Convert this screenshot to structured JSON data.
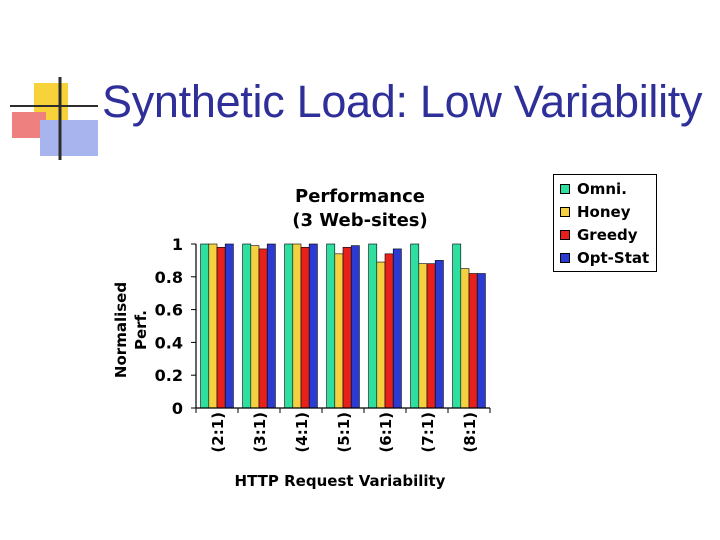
{
  "slide_title": "Synthetic Load: Low Variability",
  "chart_data": {
    "type": "bar",
    "title_lines": [
      "Performance",
      "(3 Web-sites)"
    ],
    "xlabel": "HTTP Request Variability",
    "ylabel_lines": [
      "Normalised",
      "Perf."
    ],
    "categories": [
      "(2:1)",
      "(3:1)",
      "(4:1)",
      "(5:1)",
      "(6:1)",
      "(7:1)",
      "(8:1)"
    ],
    "ylim": [
      0,
      1
    ],
    "yticks": [
      0,
      0.2,
      0.4,
      0.6,
      0.8,
      1
    ],
    "ytick_labels": [
      "0",
      "0.2",
      "0.4",
      "0.6",
      "0.8",
      "1"
    ],
    "legend_position": "top-right",
    "series": [
      {
        "name": "Omni.",
        "color": "#2ee0a0",
        "values": [
          1.0,
          1.0,
          1.0,
          1.0,
          1.0,
          1.0,
          1.0
        ]
      },
      {
        "name": "Honey",
        "color": "#f5d142",
        "values": [
          1.0,
          0.99,
          1.0,
          0.94,
          0.89,
          0.88,
          0.85
        ]
      },
      {
        "name": "Greedy",
        "color": "#e8201c",
        "values": [
          0.98,
          0.97,
          0.98,
          0.98,
          0.94,
          0.88,
          0.82
        ]
      },
      {
        "name": "Opt-Stat",
        "color": "#2b3bd1",
        "values": [
          1.0,
          1.0,
          1.0,
          0.99,
          0.97,
          0.9,
          0.82
        ]
      }
    ]
  }
}
